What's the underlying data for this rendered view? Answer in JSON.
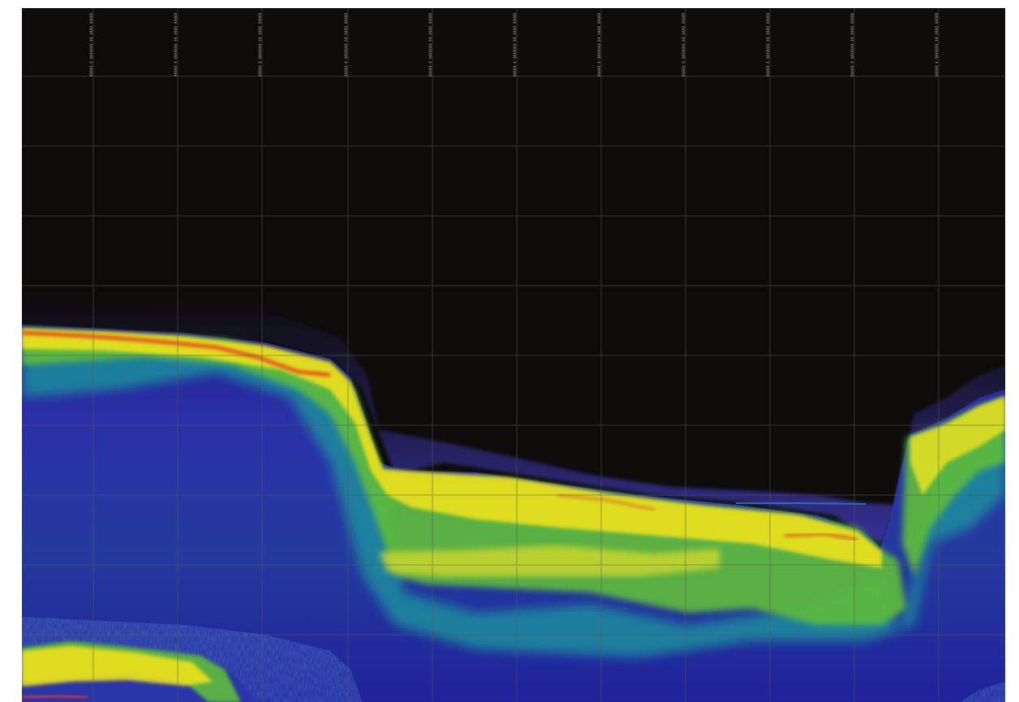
{
  "scene": {
    "subject": "sonar-echogram",
    "colors": {
      "water": "#0d0c0b",
      "grid": "#5b5a52",
      "intensity_strong": "#e8361c",
      "intensity_high": "#f2e61e",
      "intensity_mid": "#6cc33c",
      "intensity_low": "#1a9a9a",
      "intensity_weak": "#2b2fa0"
    }
  },
  "ping_labels": [
    {
      "text": "00000 0000 00 0000000 0 00000"
    },
    {
      "text": "00000 0000 00 0000000 0 00000"
    },
    {
      "text": "00000 0000 00 0000000 0 00000"
    },
    {
      "text": "00000 0000 00 0000000 0 00000"
    },
    {
      "text": "00000 0000 00 0000000 0 00000"
    },
    {
      "text": "00000 0000 00 0000000 0 00000"
    },
    {
      "text": "00000 0000 00 0000000 0 00000"
    },
    {
      "text": "00000 0000 00 0000000 0 00000"
    },
    {
      "text": "00000 0000 00 0000000 0 00000"
    },
    {
      "text": "00000 0000 00 0000000 0 00000"
    },
    {
      "text": "00000 0000 00 0000000 0 00000"
    }
  ]
}
